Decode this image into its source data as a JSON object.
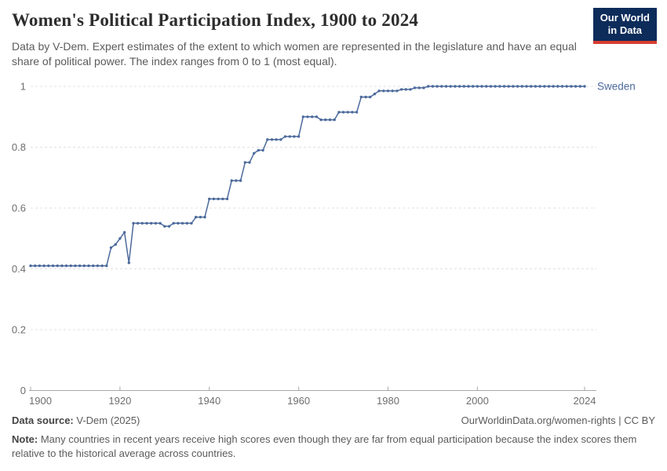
{
  "header": {
    "title": "Women's Political Participation Index, 1900 to 2024",
    "subtitle": "Data by V-Dem. Expert estimates of the extent to which women are represented in the legislature and have an equal share of political power. The index ranges from 0 to 1 (most equal).",
    "logo": {
      "line1": "Our World",
      "line2": "in Data",
      "bg_color": "#0d2c5a",
      "accent_color": "#d63e32"
    }
  },
  "chart_data": {
    "type": "line",
    "title": "Women's Political Participation Index, 1900 to 2024",
    "xlabel": "",
    "ylabel": "",
    "x_range": [
      1900,
      2024
    ],
    "ylim": [
      0,
      1
    ],
    "x_ticks": [
      1900,
      1920,
      1940,
      1960,
      1980,
      2000,
      2024
    ],
    "y_ticks": [
      0,
      0.2,
      0.4,
      0.6,
      0.8,
      1
    ],
    "y_tick_labels": [
      "0",
      "0.2",
      "0.4",
      "0.6",
      "0.8",
      "1"
    ],
    "grid": "horizontal-dashed",
    "legend_position": "end-of-line-label",
    "line_color": "#4c6a9c",
    "axis_color": "#a8a8a8",
    "grid_color": "#e0e0e0",
    "series": [
      {
        "name": "Sweden",
        "color": "#4c6a9c",
        "start_year": 1900,
        "values": [
          0.41,
          0.41,
          0.41,
          0.41,
          0.41,
          0.41,
          0.41,
          0.41,
          0.41,
          0.41,
          0.41,
          0.41,
          0.41,
          0.41,
          0.41,
          0.41,
          0.41,
          0.41,
          0.47,
          0.48,
          0.5,
          0.52,
          0.42,
          0.55,
          0.55,
          0.55,
          0.55,
          0.55,
          0.55,
          0.55,
          0.54,
          0.54,
          0.55,
          0.55,
          0.55,
          0.55,
          0.55,
          0.57,
          0.57,
          0.57,
          0.63,
          0.63,
          0.63,
          0.63,
          0.63,
          0.69,
          0.69,
          0.69,
          0.75,
          0.75,
          0.78,
          0.79,
          0.79,
          0.825,
          0.825,
          0.825,
          0.825,
          0.835,
          0.835,
          0.835,
          0.835,
          0.9,
          0.9,
          0.9,
          0.9,
          0.89,
          0.89,
          0.89,
          0.89,
          0.915,
          0.915,
          0.915,
          0.915,
          0.915,
          0.965,
          0.965,
          0.965,
          0.975,
          0.985,
          0.985,
          0.985,
          0.985,
          0.985,
          0.99,
          0.99,
          0.99,
          0.995,
          0.995,
          0.995,
          1,
          1,
          1,
          1,
          1,
          1,
          1,
          1,
          1,
          1,
          1,
          1,
          1,
          1,
          1,
          1,
          1,
          1,
          1,
          1,
          1,
          1,
          1,
          1,
          1,
          1,
          1,
          1,
          1,
          1,
          1,
          1,
          1,
          1,
          1,
          1
        ]
      }
    ]
  },
  "footer": {
    "source_label": "Data source:",
    "source_value": " V-Dem (2025)",
    "url_text": "OurWorldinData.org/women-rights | CC BY",
    "note_label": "Note:",
    "note_text": " Many countries in recent years receive high scores even though they are far from equal participation because the index scores them relative to the historical average across countries."
  }
}
